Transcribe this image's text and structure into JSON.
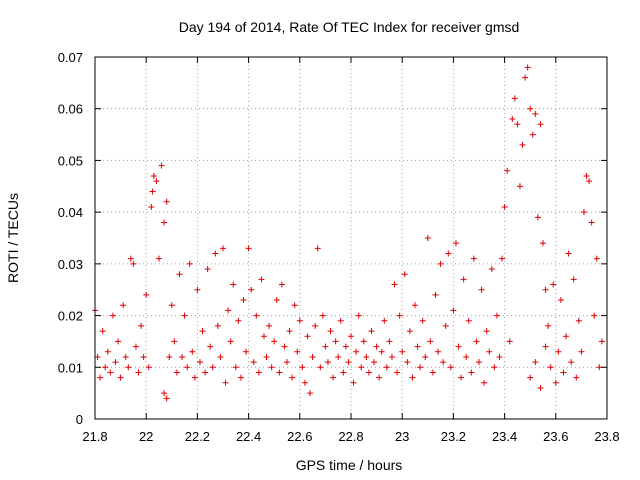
{
  "chart_data": {
    "type": "scatter",
    "title": "Day 194 of 2014, Rate Of TEC Index for receiver gmsd",
    "xlabel": "GPS time / hours",
    "ylabel": "ROTI / TECUs",
    "xlim": [
      21.8,
      23.8
    ],
    "ylim": [
      0,
      0.07
    ],
    "x_ticks": [
      21.8,
      22.0,
      22.2,
      22.4,
      22.6,
      22.8,
      23.0,
      23.2,
      23.4,
      23.6,
      23.8
    ],
    "x_tick_labels": [
      "21.8",
      "22",
      "22.2",
      "22.4",
      "22.6",
      "22.8",
      "23",
      "23.2",
      "23.4",
      "23.6",
      "23.8"
    ],
    "y_ticks": [
      0,
      0.01,
      0.02,
      0.03,
      0.04,
      0.05,
      0.06,
      0.07
    ],
    "y_tick_labels": [
      "0",
      "0.01",
      "0.02",
      "0.03",
      "0.04",
      "0.05",
      "0.06",
      "0.07"
    ],
    "grid": true,
    "marker": "+",
    "marker_color": "#e00000",
    "series": [
      {
        "name": "ROTI",
        "points": [
          [
            21.8,
            0.021
          ],
          [
            21.81,
            0.012
          ],
          [
            21.82,
            0.008
          ],
          [
            21.83,
            0.017
          ],
          [
            21.84,
            0.01
          ],
          [
            21.85,
            0.013
          ],
          [
            21.86,
            0.009
          ],
          [
            21.87,
            0.02
          ],
          [
            21.88,
            0.011
          ],
          [
            21.89,
            0.015
          ],
          [
            21.9,
            0.008
          ],
          [
            21.91,
            0.022
          ],
          [
            21.92,
            0.012
          ],
          [
            21.93,
            0.01
          ],
          [
            21.94,
            0.031
          ],
          [
            21.95,
            0.03
          ],
          [
            21.96,
            0.014
          ],
          [
            21.97,
            0.009
          ],
          [
            21.98,
            0.018
          ],
          [
            21.99,
            0.012
          ],
          [
            22.0,
            0.024
          ],
          [
            22.01,
            0.01
          ],
          [
            22.02,
            0.041
          ],
          [
            22.025,
            0.044
          ],
          [
            22.03,
            0.047
          ],
          [
            22.04,
            0.046
          ],
          [
            22.05,
            0.031
          ],
          [
            22.06,
            0.049
          ],
          [
            22.07,
            0.038
          ],
          [
            22.08,
            0.042
          ],
          [
            22.07,
            0.005
          ],
          [
            22.08,
            0.004
          ],
          [
            22.09,
            0.012
          ],
          [
            22.1,
            0.022
          ],
          [
            22.11,
            0.015
          ],
          [
            22.12,
            0.009
          ],
          [
            22.13,
            0.028
          ],
          [
            22.14,
            0.012
          ],
          [
            22.15,
            0.02
          ],
          [
            22.16,
            0.01
          ],
          [
            22.17,
            0.03
          ],
          [
            22.18,
            0.013
          ],
          [
            22.19,
            0.008
          ],
          [
            22.2,
            0.025
          ],
          [
            22.21,
            0.011
          ],
          [
            22.22,
            0.017
          ],
          [
            22.23,
            0.009
          ],
          [
            22.24,
            0.029
          ],
          [
            22.25,
            0.014
          ],
          [
            22.26,
            0.01
          ],
          [
            22.27,
            0.032
          ],
          [
            22.28,
            0.018
          ],
          [
            22.29,
            0.012
          ],
          [
            22.3,
            0.033
          ],
          [
            22.31,
            0.007
          ],
          [
            22.32,
            0.021
          ],
          [
            22.33,
            0.015
          ],
          [
            22.34,
            0.026
          ],
          [
            22.35,
            0.01
          ],
          [
            22.36,
            0.019
          ],
          [
            22.37,
            0.008
          ],
          [
            22.38,
            0.023
          ],
          [
            22.39,
            0.013
          ],
          [
            22.4,
            0.033
          ],
          [
            22.41,
            0.025
          ],
          [
            22.42,
            0.011
          ],
          [
            22.43,
            0.02
          ],
          [
            22.44,
            0.009
          ],
          [
            22.45,
            0.027
          ],
          [
            22.46,
            0.016
          ],
          [
            22.47,
            0.012
          ],
          [
            22.48,
            0.018
          ],
          [
            22.49,
            0.01
          ],
          [
            22.5,
            0.015
          ],
          [
            22.51,
            0.023
          ],
          [
            22.52,
            0.009
          ],
          [
            22.53,
            0.026
          ],
          [
            22.54,
            0.014
          ],
          [
            22.55,
            0.011
          ],
          [
            22.56,
            0.017
          ],
          [
            22.57,
            0.008
          ],
          [
            22.58,
            0.022
          ],
          [
            22.59,
            0.013
          ],
          [
            22.6,
            0.019
          ],
          [
            22.61,
            0.01
          ],
          [
            22.62,
            0.007
          ],
          [
            22.63,
            0.016
          ],
          [
            22.64,
            0.005
          ],
          [
            22.65,
            0.012
          ],
          [
            22.66,
            0.018
          ],
          [
            22.67,
            0.033
          ],
          [
            22.68,
            0.01
          ],
          [
            22.69,
            0.02
          ],
          [
            22.7,
            0.014
          ],
          [
            22.71,
            0.011
          ],
          [
            22.72,
            0.017
          ],
          [
            22.73,
            0.008
          ],
          [
            22.74,
            0.015
          ],
          [
            22.75,
            0.012
          ],
          [
            22.76,
            0.019
          ],
          [
            22.77,
            0.009
          ],
          [
            22.78,
            0.014
          ],
          [
            22.79,
            0.011
          ],
          [
            22.8,
            0.016
          ],
          [
            22.81,
            0.007
          ],
          [
            22.82,
            0.013
          ],
          [
            22.83,
            0.02
          ],
          [
            22.84,
            0.01
          ],
          [
            22.85,
            0.015
          ],
          [
            22.86,
            0.012
          ],
          [
            22.87,
            0.009
          ],
          [
            22.88,
            0.017
          ],
          [
            22.89,
            0.011
          ],
          [
            22.9,
            0.014
          ],
          [
            22.91,
            0.008
          ],
          [
            22.92,
            0.013
          ],
          [
            22.93,
            0.019
          ],
          [
            22.94,
            0.01
          ],
          [
            22.95,
            0.015
          ],
          [
            22.96,
            0.012
          ],
          [
            22.97,
            0.026
          ],
          [
            22.98,
            0.009
          ],
          [
            22.99,
            0.02
          ],
          [
            23.0,
            0.013
          ],
          [
            23.01,
            0.028
          ],
          [
            23.02,
            0.011
          ],
          [
            23.03,
            0.017
          ],
          [
            23.04,
            0.008
          ],
          [
            23.05,
            0.022
          ],
          [
            23.06,
            0.014
          ],
          [
            23.07,
            0.01
          ],
          [
            23.08,
            0.019
          ],
          [
            23.09,
            0.012
          ],
          [
            23.1,
            0.035
          ],
          [
            23.11,
            0.015
          ],
          [
            23.12,
            0.009
          ],
          [
            23.13,
            0.024
          ],
          [
            23.14,
            0.013
          ],
          [
            23.15,
            0.03
          ],
          [
            23.16,
            0.011
          ],
          [
            23.17,
            0.018
          ],
          [
            23.18,
            0.032
          ],
          [
            23.19,
            0.01
          ],
          [
            23.2,
            0.021
          ],
          [
            23.21,
            0.034
          ],
          [
            23.22,
            0.014
          ],
          [
            23.23,
            0.008
          ],
          [
            23.24,
            0.027
          ],
          [
            23.25,
            0.012
          ],
          [
            23.26,
            0.019
          ],
          [
            23.27,
            0.009
          ],
          [
            23.28,
            0.031
          ],
          [
            23.29,
            0.015
          ],
          [
            23.3,
            0.011
          ],
          [
            23.31,
            0.025
          ],
          [
            23.32,
            0.007
          ],
          [
            23.33,
            0.017
          ],
          [
            23.34,
            0.013
          ],
          [
            23.35,
            0.029
          ],
          [
            23.36,
            0.01
          ],
          [
            23.37,
            0.02
          ],
          [
            23.38,
            0.012
          ],
          [
            23.39,
            0.031
          ],
          [
            23.4,
            0.041
          ],
          [
            23.41,
            0.048
          ],
          [
            23.42,
            0.015
          ],
          [
            23.43,
            0.058
          ],
          [
            23.44,
            0.062
          ],
          [
            23.45,
            0.057
          ],
          [
            23.46,
            0.045
          ],
          [
            23.47,
            0.053
          ],
          [
            23.48,
            0.066
          ],
          [
            23.49,
            0.068
          ],
          [
            23.5,
            0.06
          ],
          [
            23.51,
            0.055
          ],
          [
            23.52,
            0.059
          ],
          [
            23.53,
            0.039
          ],
          [
            23.54,
            0.057
          ],
          [
            23.55,
            0.034
          ],
          [
            23.56,
            0.025
          ],
          [
            23.5,
            0.008
          ],
          [
            23.52,
            0.011
          ],
          [
            23.54,
            0.006
          ],
          [
            23.56,
            0.014
          ],
          [
            23.57,
            0.018
          ],
          [
            23.58,
            0.01
          ],
          [
            23.59,
            0.026
          ],
          [
            23.6,
            0.007
          ],
          [
            23.61,
            0.013
          ],
          [
            23.62,
            0.023
          ],
          [
            23.63,
            0.009
          ],
          [
            23.64,
            0.016
          ],
          [
            23.65,
            0.032
          ],
          [
            23.66,
            0.011
          ],
          [
            23.67,
            0.027
          ],
          [
            23.68,
            0.008
          ],
          [
            23.69,
            0.019
          ],
          [
            23.7,
            0.013
          ],
          [
            23.71,
            0.04
          ],
          [
            23.72,
            0.047
          ],
          [
            23.73,
            0.046
          ],
          [
            23.74,
            0.038
          ],
          [
            23.75,
            0.02
          ],
          [
            23.76,
            0.031
          ],
          [
            23.77,
            0.01
          ],
          [
            23.78,
            0.015
          ]
        ]
      }
    ]
  }
}
